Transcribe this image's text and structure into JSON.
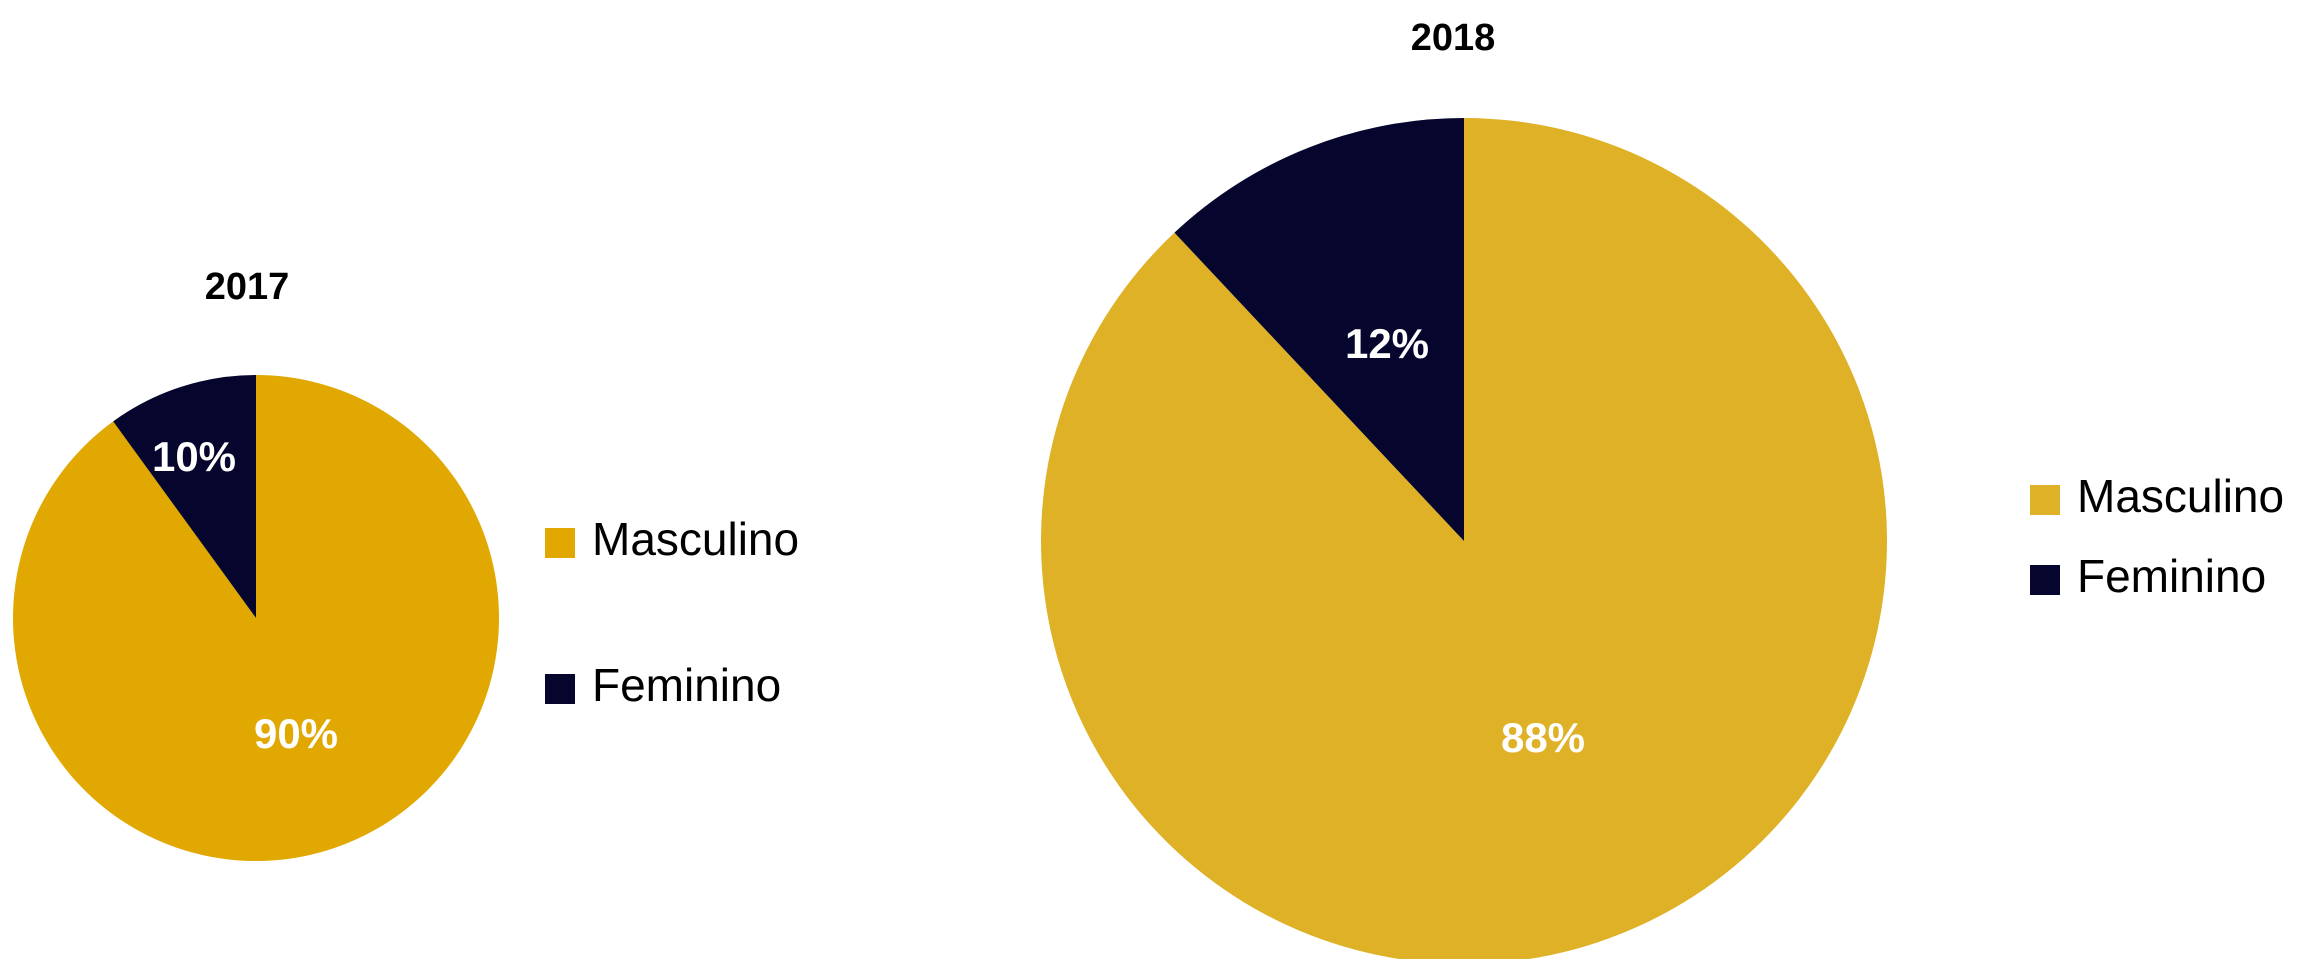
{
  "chart_data": [
    {
      "type": "pie",
      "title": "2017",
      "categories": [
        "Masculino",
        "Feminino"
      ],
      "values": [
        90,
        10
      ],
      "labels": [
        "90%",
        "10%"
      ],
      "colors": [
        "#E0A800",
        "#05052E"
      ],
      "legend": {
        "position": "right",
        "entries": [
          "Masculino",
          "Feminino"
        ]
      }
    },
    {
      "type": "pie",
      "title": "2018",
      "categories": [
        "Masculino",
        "Feminino"
      ],
      "values": [
        88,
        12
      ],
      "labels": [
        "88%",
        "12%"
      ],
      "colors": [
        "#DFB126",
        "#05052E"
      ],
      "legend": {
        "position": "right",
        "entries": [
          "Masculino",
          "Feminino"
        ]
      }
    }
  ]
}
